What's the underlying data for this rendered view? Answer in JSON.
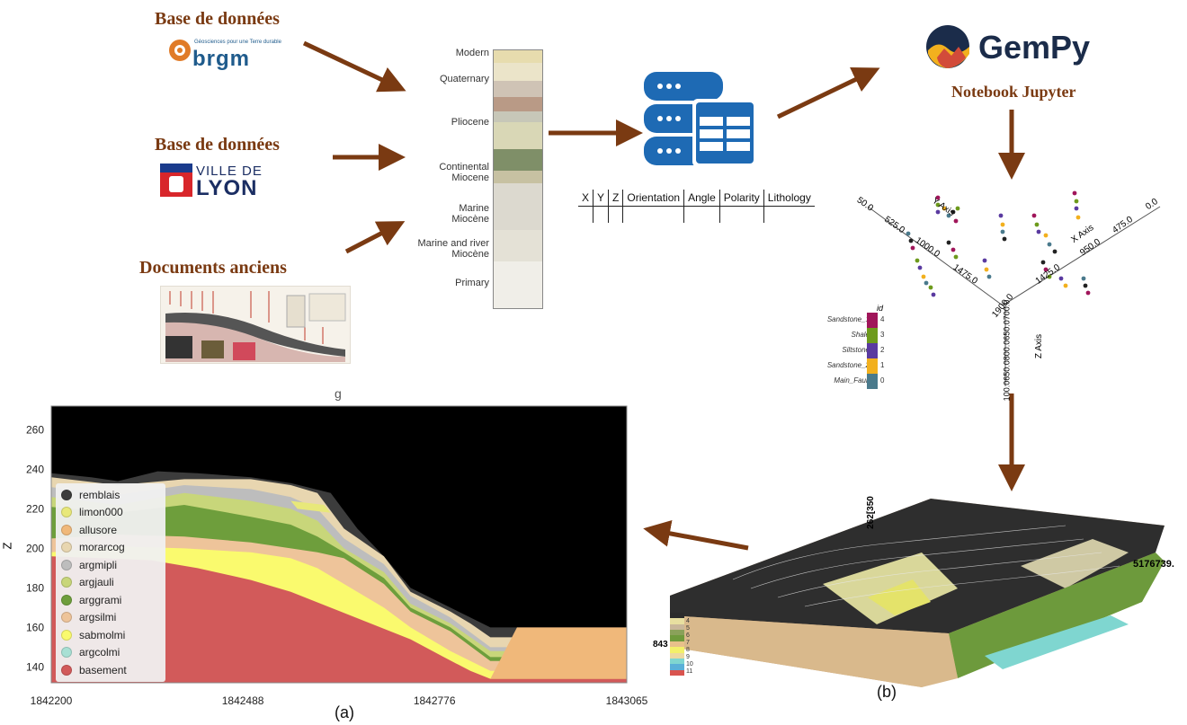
{
  "sources": {
    "brgm": {
      "title": "Base de données",
      "logo_text": "brgm",
      "logo_tagline": "Géosciences pour une Terre durable"
    },
    "lyon": {
      "title": "Base de données",
      "logo_line1": "VILLE DE",
      "logo_line2": "LYON"
    },
    "docs": {
      "title": "Documents anciens"
    }
  },
  "strat_column": {
    "labels": [
      "Modern",
      "Quaternary",
      "Pliocene",
      "Continental\nMiocene",
      "Marine\nMiocène",
      "Marine and river\nMiocène",
      "Primary"
    ]
  },
  "table": {
    "headers": [
      "X",
      "Y",
      "Z",
      "Orientation",
      "Angle",
      "Polarity",
      "Lithology"
    ]
  },
  "gempy": {
    "logo_text": "GemPy",
    "subtitle": "Notebook Jupyter"
  },
  "plot3d": {
    "y_axis_title": "Y Axis",
    "x_axis_title": "X Axis",
    "z_axis_title": "Z Axis",
    "y_ticks": [
      "50.0",
      "525.0",
      "1000.0",
      "1475.0",
      "1900.0"
    ],
    "x_ticks": [
      "0.0",
      "475.0",
      "950.0",
      "1425.0"
    ],
    "z_ticks": "100.0650.0800.0650.0700.0",
    "id_legend": {
      "title": "id",
      "items": [
        {
          "label": "Sandstone_1",
          "id": "4",
          "color": "#a0155a"
        },
        {
          "label": "Shale",
          "id": "3",
          "color": "#6d9a1c"
        },
        {
          "label": "Siltstone",
          "id": "2",
          "color": "#5a3aa0"
        },
        {
          "label": "Sandstone_2",
          "id": "1",
          "color": "#f2b01e"
        },
        {
          "label": "Main_Fault",
          "id": "0",
          "color": "#4a7a8c"
        }
      ]
    }
  },
  "model3d": {
    "coord_top": "262[350",
    "coord_right": "5176739.",
    "coord_left": "843",
    "legend_numbers": [
      "4",
      "5",
      "6",
      "7",
      "8",
      "9",
      "10",
      "11"
    ],
    "legend_colors": [
      "#2b2b2b",
      "#e8dfa0",
      "#c9b79a",
      "#8aa15a",
      "#6f9a3c",
      "#e8c08a",
      "#f3f06a",
      "#ecd9a0",
      "#7fd6d0",
      "#5ab0d8",
      "#d9544f"
    ],
    "caption": "(b)"
  },
  "chart_data": {
    "type": "area",
    "title": "",
    "xlabel": "",
    "ylabel": "Z",
    "xlim": [
      1842200,
      1843065
    ],
    "ylim": [
      132,
      272
    ],
    "x_ticks": [
      "1842200",
      "1842488",
      "1842776",
      "1843065"
    ],
    "y_ticks": [
      "140",
      "160",
      "180",
      "200",
      "220",
      "240",
      "260"
    ],
    "series": [
      {
        "name": "remblais",
        "color": "#3c3c3c"
      },
      {
        "name": "limon000",
        "color": "#e8e87a"
      },
      {
        "name": "allusore",
        "color": "#f0b87a"
      },
      {
        "name": "morarcog",
        "color": "#e8d6b0"
      },
      {
        "name": "argmipli",
        "color": "#bdbdbd"
      },
      {
        "name": "argjauli",
        "color": "#c8d67a"
      },
      {
        "name": "arggrami",
        "color": "#6e9e3c"
      },
      {
        "name": "argsilmi",
        "color": "#eec49a"
      },
      {
        "name": "sabmolmi",
        "color": "#fafa6e"
      },
      {
        "name": "argcolmi",
        "color": "#a8e0d4"
      },
      {
        "name": "basement",
        "color": "#d25a5a"
      }
    ],
    "legend_position": "upper-left",
    "background": "#000000",
    "caption": "(a)",
    "top_glyph": "g"
  }
}
